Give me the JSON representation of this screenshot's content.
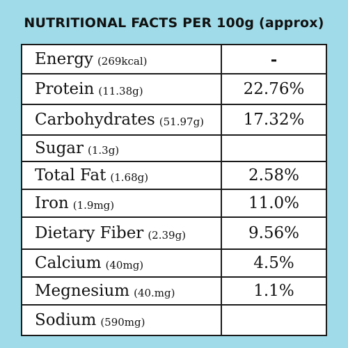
{
  "title": "NUTRITIONAL FACTS  PER 100g (approx)",
  "rows": [
    {
      "name": "Energy",
      "qty": "(269kcal)",
      "value": "-"
    },
    {
      "name": "Protein",
      "qty": "(11.38g)",
      "value": "22.76%"
    },
    {
      "name": "Carbohydrates",
      "qty": "(51.97g)",
      "value": "17.32%"
    },
    {
      "name": "Sugar",
      "qty": "(1.3g)",
      "value": ""
    },
    {
      "name": "Total Fat",
      "qty": "(1.68g)",
      "value": "2.58%"
    },
    {
      "name": "Iron",
      "qty": "(1.9mg)",
      "value": "11.0%"
    },
    {
      "name": "Dietary Fiber",
      "qty": "(2.39g)",
      "value": "9.56%"
    },
    {
      "name": "Calcium",
      "qty": "(40mg)",
      "value": "4.5%"
    },
    {
      "name": "Megnesium",
      "qty": "(40.mg)",
      "value": "1.1%"
    },
    {
      "name": "Sodium",
      "qty": "(590mg)",
      "value": ""
    }
  ],
  "colors": {
    "background": "#9fdbe8",
    "table": "#ffffff",
    "border": "#1a1a1a"
  }
}
